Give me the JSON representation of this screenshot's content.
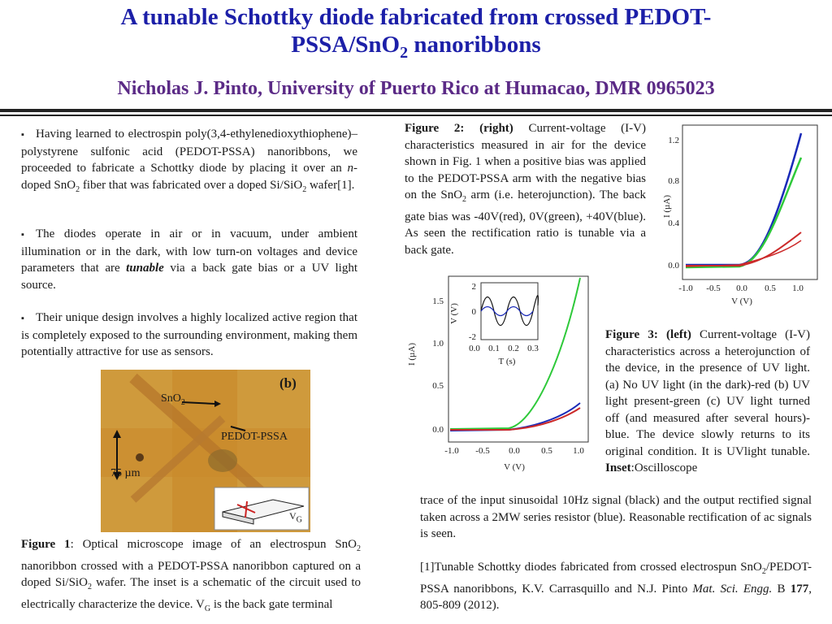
{
  "header": {
    "title_line1": "A tunable Schottky diode fabricated from crossed PEDOT-",
    "title_line2a": "PSSA/SnO",
    "title_line2sub": "2",
    "title_line2b": " nanoribbons",
    "author": "Nicholas J. Pinto, University of Puerto Rico at Humacao, DMR 0965023"
  },
  "bullets": [
    {
      "parts": [
        "Having learned to electrospin poly(3,4-ethylenedioxythiophene)–polystyrene sulfonic acid (PEDOT-PSSA) nanoribbons, we proceeded to fabricate a Schottky diode by placing it over an ",
        "n",
        "-doped SnO",
        "2",
        " fiber that was fabricated over a doped Si/SiO",
        "2",
        " wafer[1]."
      ]
    },
    {
      "parts": [
        "The diodes operate in air or in vacuum, under ambient illumination or in the dark, with low turn-on voltages and device parameters that are ",
        "tunable",
        " via a back gate bias or a UV light source."
      ]
    },
    {
      "parts": [
        "Their unique design involves a highly localized active region that is completely exposed to the surrounding environment, making them potentially attractive for use as sensors."
      ]
    }
  ],
  "fig1": {
    "photo_label": "(b)",
    "sno2_label": "SnO",
    "sno2_sub": "2",
    "pedot_label": "PEDOT-PSSA",
    "scale_label": "75 µm",
    "inset_label": "V",
    "inset_sub": "G",
    "caption_bold": "Figure 1",
    "caption_parts": [
      ": Optical microscope image of an electrospun SnO",
      "2",
      " nanoribbon crossed with a PEDOT-PSSA nanoribbon captured on a doped Si/SiO",
      "2",
      " wafer. The inset is a schematic of the circuit used to electrically characterize the device. V",
      "G",
      " is the back gate terminal"
    ]
  },
  "fig2": {
    "caption_bold": "Figure 2: (right)",
    "caption_parts": [
      " Current-voltage (I-V) characteristics measured in air for the device shown in Fig. 1 when a positive bias was applied to the PEDOT-PSSA arm with the negative bias on the SnO",
      "2",
      " arm (i.e. heterojunction). The back gate bias was -40V(red), 0V(green), +40V(blue). As seen the rectification ratio is tunable via a back gate."
    ],
    "ylabel": "I (µA)",
    "xlabel": "V (V)",
    "yticks": [
      "1.2",
      "0.8",
      "0.4",
      "0.0"
    ],
    "xticks": [
      "-1.0",
      "-0.5",
      "0.0",
      "0.5",
      "1.0"
    ]
  },
  "fig3": {
    "caption_bold": "Figure 3: (left)",
    "caption_text": " Current-voltage (I-V) characteristics across a heterojunction of the device, in the presence of UV light. (a) No UV light (in the dark)-red (b) UV light present-green (c) UV light turned off (and measured after several hours)-blue. The device slowly returns to its original condition. It is UVlight tunable. ",
    "inset_bold": "Inset",
    "inset_text": ":Oscilloscope",
    "continued": "trace of the input sinusoidal 10Hz signal (black) and the output rectified signal taken across a 2MW series resistor (blue). Reasonable rectification of ac signals is seen.",
    "ylabel": "I (µA)",
    "xlabel": "V (V)",
    "yticks": [
      "1.5",
      "1.0",
      "0.5",
      "0.0"
    ],
    "xticks": [
      "-1.0",
      "-0.5",
      "0.0",
      "0.5",
      "1.0"
    ],
    "inset_ylabel": "V (V)",
    "inset_xlabel": "T (s)",
    "inset_yticks": [
      "2",
      "0",
      "-2"
    ],
    "inset_xticks": [
      "0.0",
      "0.1",
      "0.2",
      "0.3"
    ]
  },
  "reference": {
    "parts": [
      "[1]Tunable Schottky diodes fabricated from crossed electrospun SnO",
      "2",
      "/PEDOT-PSSA nanoribbons, K.V. Carrasquillo and N.J. Pinto "
    ],
    "journal": "Mat. Sci. Engg.",
    "vol_pre": " B ",
    "vol": "177",
    "pages": ", 805-809 (2012)."
  },
  "colors": {
    "title": "#1c1fa8",
    "author": "#5b2a86",
    "red": "#cc2a2a",
    "green": "#2ec93a",
    "blue": "#1a2ab8"
  }
}
